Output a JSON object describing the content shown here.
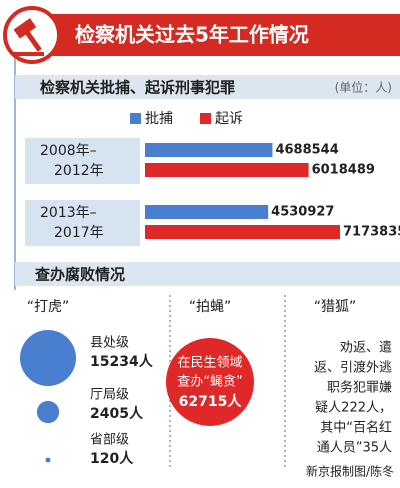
{
  "title": "检察机关过去5年工作情况",
  "chart_data": {
    "type": "bar",
    "orientation": "horizontal",
    "title": "检察机关批捕、起诉刑事犯罪",
    "unit": "(单位：人)",
    "categories": [
      [
        "2008年–",
        "2012年"
      ],
      [
        "2013年–",
        "2017年"
      ]
    ],
    "series": [
      {
        "name": "批捕",
        "color": "#4a7fd0",
        "values": [
          4688544,
          4530927
        ]
      },
      {
        "name": "起诉",
        "color": "#e02828",
        "values": [
          6018489,
          7173835
        ]
      }
    ]
  },
  "corruption": {
    "title": "查办腐败情况",
    "tigers": {
      "label": "“打虎”",
      "color": "#4a7fd0",
      "levels": [
        "县处级",
        "厅局级",
        "省部级"
      ],
      "values": [
        15234,
        2405,
        120
      ],
      "value_labels": [
        "15234人",
        "2405人",
        "120人"
      ]
    },
    "flies": {
      "label": "“拍蝇”",
      "lines": [
        "在民生领域",
        "查办“蝇贪”",
        "62715人"
      ]
    },
    "foxes": {
      "label": "“猎狐”",
      "lines": [
        "劝返、遣",
        "返、引渡外逃",
        "职务犯罪嫌",
        "疑人222人，",
        "其中“百名红",
        "通人员”35人"
      ]
    }
  },
  "credit": "新京报制图/陈冬"
}
